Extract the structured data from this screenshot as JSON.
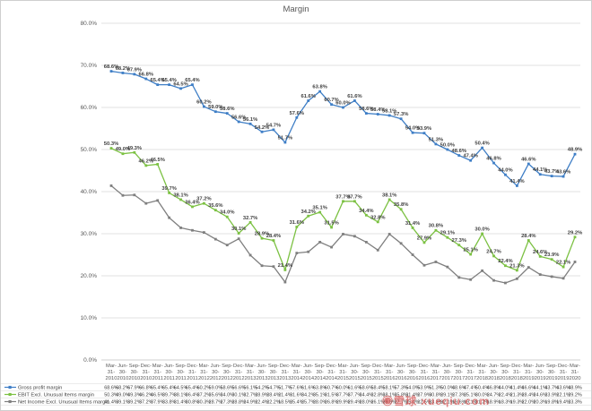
{
  "watermark": "◉雪球 xueqiu.com",
  "colors": {
    "gross": "#3E7EC6",
    "ebit": "#7CC143",
    "net": "#7F7F7F",
    "gridline": "#D9D9D9",
    "axis_line": "#BFBFBF",
    "axis_text": "#595959",
    "label_text": "#404040",
    "separator": "#E4E4E4",
    "watermark": "#D23C3C"
  },
  "y_axis": {
    "ticks": [
      "0.0%",
      "10.0%",
      "20.0%",
      "30.0%",
      "40.0%",
      "50.0%",
      "60.0%",
      "70.0%",
      "80.0%"
    ]
  },
  "chart_data": {
    "type": "line",
    "title": "Margin",
    "ylim": [
      0,
      80
    ],
    "y_tick_step": 10,
    "grid": true,
    "legend_position": "bottom-left-table",
    "x": [
      "Mar-31-2010",
      "Jun-30-2010",
      "Sep-30-2010",
      "Dec-31-2010",
      "Mar-31-2011",
      "Jun-30-2011",
      "Sep-30-2011",
      "Dec-31-2011",
      "Mar-31-2012",
      "Jun-30-2012",
      "Sep-30-2012",
      "Dec-31-2012",
      "Mar-31-2013",
      "Jun-30-2013",
      "Sep-30-2013",
      "Dec-31-2013",
      "Mar-31-2014",
      "Jun-30-2014",
      "Sep-30-2014",
      "Dec-31-2014",
      "Mar-31-2015",
      "Jun-30-2015",
      "Sep-30-2015",
      "Dec-31-2015",
      "Mar-31-2016",
      "Jun-30-2016",
      "Sep-30-2016",
      "Dec-31-2016",
      "Mar-31-2017",
      "Jun-30-2017",
      "Sep-30-2017",
      "Dec-31-2017",
      "Mar-31-2018",
      "Jun-30-2018",
      "Sep-30-2018",
      "Dec-31-2018",
      "Mar-31-2019",
      "Jun-30-2019",
      "Sep-30-2019",
      "Dec-31-2019",
      "Mar-31-2020"
    ],
    "series": [
      {
        "name": "Gross profit margin",
        "color": "#3E7EC6",
        "point_labels": true,
        "values": [
          68.6,
          68.2,
          67.9,
          66.8,
          65.4,
          65.4,
          64.5,
          65.4,
          60.2,
          59.0,
          58.6,
          56.6,
          56.1,
          54.2,
          54.7,
          51.7,
          57.6,
          61.6,
          63.8,
          60.7,
          60.0,
          61.6,
          58.6,
          58.4,
          58.1,
          57.3,
          54.0,
          53.9,
          51.3,
          50.0,
          48.6,
          47.4,
          50.4,
          46.8,
          44.0,
          41.4,
          46.6,
          44.1,
          43.7,
          43.6,
          48.9
        ]
      },
      {
        "name": "EBIT Excl. Unusual Items margin",
        "color": "#7CC143",
        "point_labels": true,
        "values": [
          50.3,
          49.0,
          49.3,
          46.2,
          46.5,
          39.7,
          38.1,
          36.4,
          37.2,
          35.6,
          34.0,
          30.1,
          32.7,
          28.9,
          28.4,
          21.4,
          31.6,
          34.2,
          35.1,
          31.5,
          37.7,
          37.7,
          34.4,
          32.8,
          38.1,
          35.8,
          31.4,
          27.9,
          30.8,
          29.1,
          27.3,
          25.1,
          30.0,
          24.7,
          22.4,
          21.3,
          28.4,
          24.6,
          23.9,
          22.1,
          29.2
        ]
      },
      {
        "name": "Net Income Excl. Unusual Items margin",
        "color": "#7F7F7F",
        "point_labels": false,
        "values": [
          41.4,
          39.1,
          39.2,
          37.2,
          37.9,
          33.8,
          31.4,
          30.8,
          30.3,
          28.7,
          27.3,
          28.8,
          24.9,
          22.4,
          22.2,
          18.5,
          25.4,
          25.7,
          28.0,
          26.8,
          29.9,
          29.4,
          28.0,
          26.1,
          29.9,
          27.7,
          25.0,
          22.5,
          23.3,
          22.1,
          19.6,
          19.1,
          21.2,
          18.9,
          18.3,
          19.3,
          22.0,
          20.3,
          19.8,
          19.4,
          23.3
        ]
      }
    ]
  }
}
